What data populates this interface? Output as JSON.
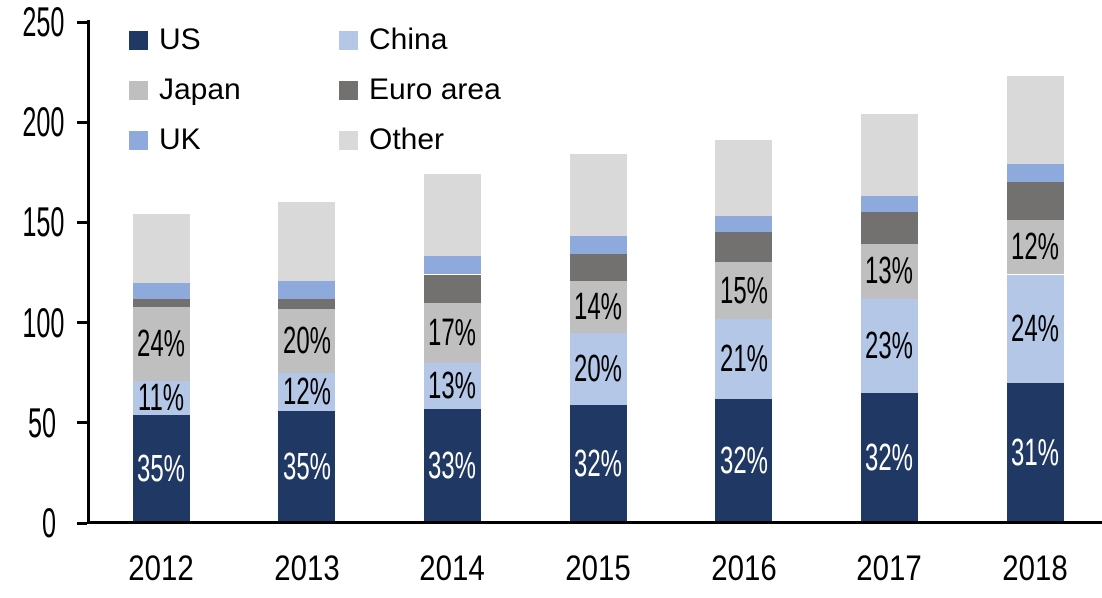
{
  "chart_data": {
    "type": "bar",
    "stacked": true,
    "title": "",
    "xlabel": "",
    "ylabel": "",
    "categories": [
      "2012",
      "2013",
      "2014",
      "2015",
      "2016",
      "2017",
      "2018"
    ],
    "ylim": [
      0,
      250
    ],
    "y_ticks": [
      "0",
      "50",
      "100",
      "150",
      "200",
      "250"
    ],
    "grid": false,
    "legend_position": "top-left",
    "legend_columns": 2,
    "legend_order": [
      "US",
      "China",
      "Japan",
      "Euro area",
      "UK",
      "Other"
    ],
    "series": [
      {
        "name": "US",
        "color": "#1F3864",
        "label_color": "#FFFFFF",
        "values": [
          54,
          56,
          57,
          59,
          62,
          65,
          70
        ],
        "labels": [
          "35%",
          "35%",
          "33%",
          "32%",
          "32%",
          "32%",
          "31%"
        ]
      },
      {
        "name": "China",
        "color": "#B4C7E7",
        "label_color": "#000000",
        "values": [
          17,
          19,
          23,
          36,
          40,
          47,
          54
        ],
        "labels": [
          "11%",
          "12%",
          "13%",
          "20%",
          "21%",
          "23%",
          "24%"
        ]
      },
      {
        "name": "Japan",
        "color": "#BFBFBF",
        "label_color": "#000000",
        "values": [
          37,
          32,
          30,
          26,
          28,
          27,
          27
        ],
        "labels": [
          "24%",
          "20%",
          "17%",
          "14%",
          "15%",
          "13%",
          "12%"
        ]
      },
      {
        "name": "Euro area",
        "color": "#737070",
        "values": [
          4,
          5,
          14,
          13,
          15,
          16,
          19
        ]
      },
      {
        "name": "UK",
        "color": "#8EA9DB",
        "values": [
          8,
          9,
          9,
          9,
          8,
          8,
          9
        ]
      },
      {
        "name": "Other",
        "color": "#D9D9D9",
        "values": [
          34,
          39,
          41,
          41,
          38,
          41,
          44
        ]
      }
    ],
    "totals": [
      154,
      160,
      174,
      184,
      191,
      204,
      223
    ],
    "axis_color": "#000000",
    "background_color": "#FFFFFF"
  }
}
